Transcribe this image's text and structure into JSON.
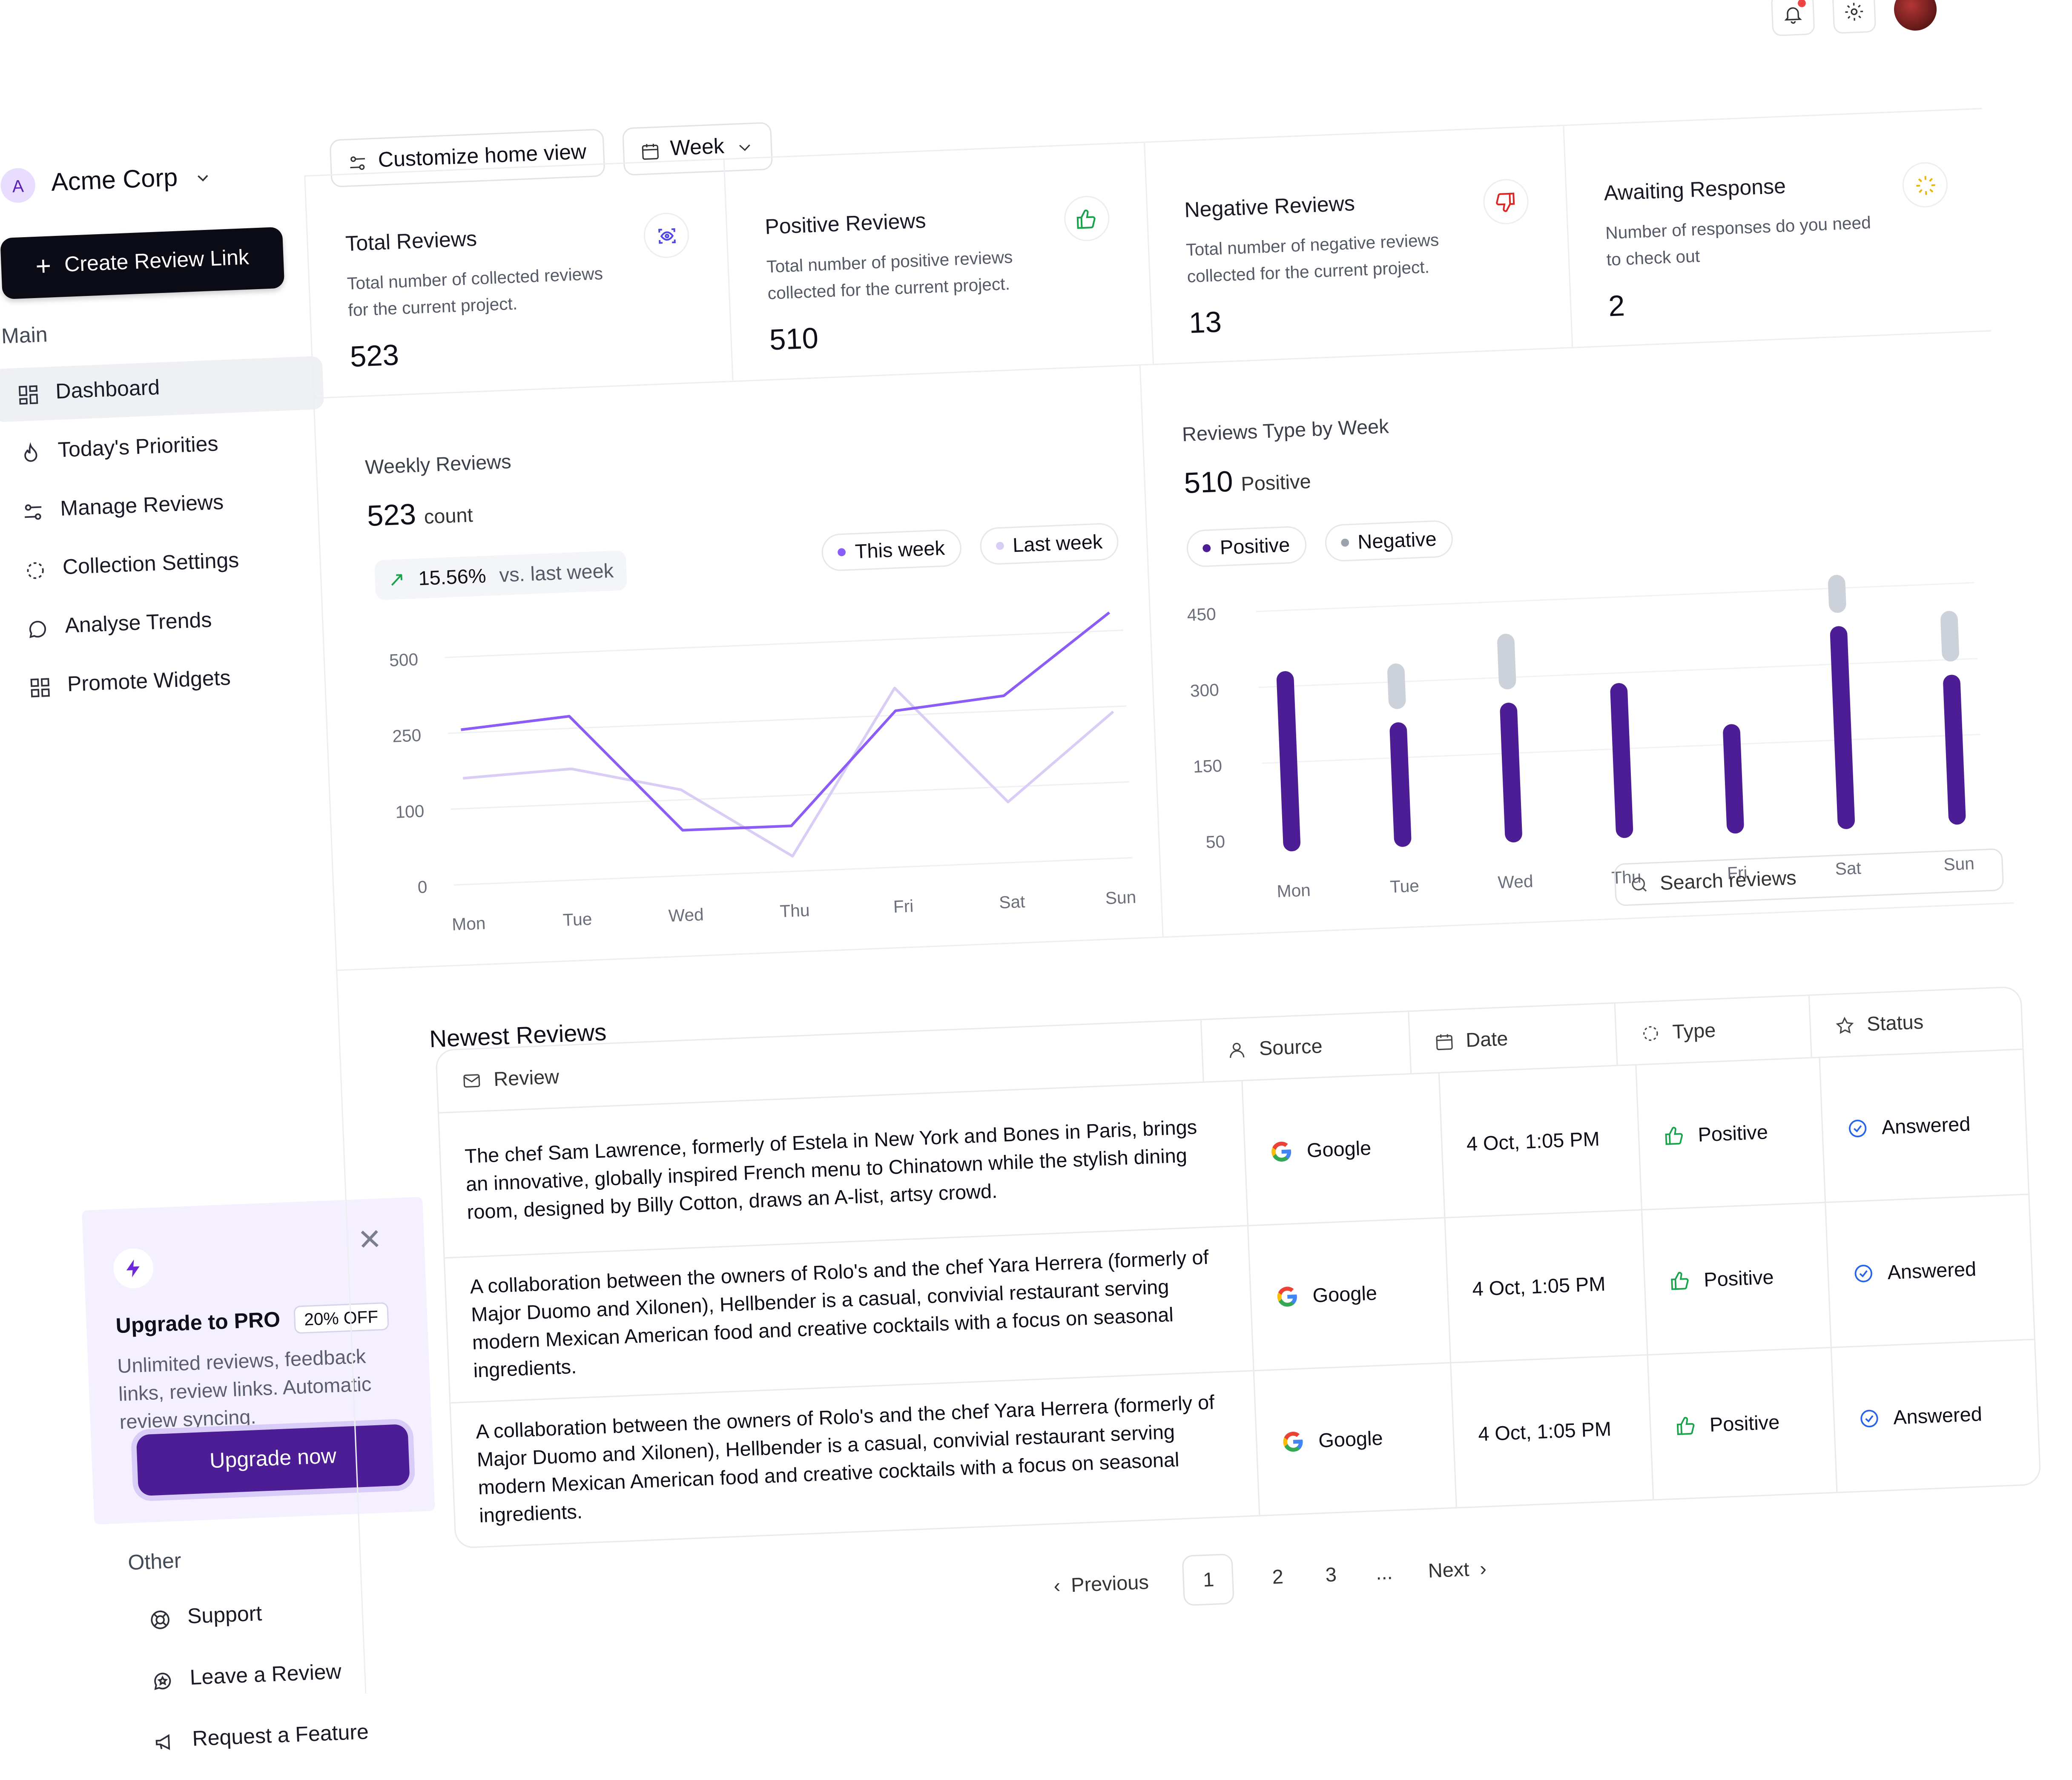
{
  "workspace": {
    "initial": "A",
    "name": "Acme Corp"
  },
  "sidebar": {
    "create_label": "Create Review Link",
    "main_label": "Main",
    "items": [
      {
        "label": "Dashboard",
        "icon": "dashboard-icon",
        "active": true
      },
      {
        "label": "Today's Priorities",
        "icon": "flame-icon"
      },
      {
        "label": "Manage Reviews",
        "icon": "sliders-icon"
      },
      {
        "label": "Collection Settings",
        "icon": "loader-circle-icon"
      },
      {
        "label": "Analyse Trends",
        "icon": "chat-bubble-icon"
      },
      {
        "label": "Promote Widgets",
        "icon": "widgets-icon"
      }
    ],
    "upgrade": {
      "title": "Upgrade to PRO",
      "badge": "20% OFF",
      "text": "Unlimited reviews, feedback links, review links. Automatic review syncing.",
      "button": "Upgrade now"
    },
    "other_label": "Other",
    "other_items": [
      {
        "label": "Support",
        "icon": "lifebuoy-icon"
      },
      {
        "label": "Leave a Review",
        "icon": "chat-star-icon"
      },
      {
        "label": "Request a Feature",
        "icon": "megaphone-icon"
      }
    ]
  },
  "toolbar": {
    "customize_label": "Customize home view",
    "period_label": "Week"
  },
  "stats": [
    {
      "title": "Total Reviews",
      "desc": "Total number of collected reviews for the current project.",
      "value": "523",
      "icon": "eye-scan-icon",
      "color": "#4f46e5"
    },
    {
      "title": "Positive Reviews",
      "desc": "Total number of positive reviews collected for the current project.",
      "value": "510",
      "icon": "thumbs-up-icon",
      "color": "#16a34a"
    },
    {
      "title": "Negative Reviews",
      "desc": "Total number of negative reviews collected for the current project.",
      "value": "13",
      "icon": "thumbs-down-icon",
      "color": "#dc2626"
    },
    {
      "title": "Awaiting Response",
      "desc": "Number of responses do you need to check out",
      "value": "2",
      "icon": "loader-sun-icon",
      "color": "#eab308"
    }
  ],
  "weekly": {
    "title": "Weekly Reviews",
    "value": "523",
    "unit": "count",
    "delta": "15.56%",
    "delta_text": "vs. last week",
    "legend": [
      "This week",
      "Last week"
    ],
    "colors": {
      "this_week": "#8b5cf6",
      "last_week": "#d9cdf6"
    }
  },
  "type_week": {
    "title": "Reviews Type by Week",
    "value": "510",
    "unit": "Positive",
    "legend": [
      "Positive",
      "Negative"
    ],
    "colors": {
      "positive": "#4c1d95",
      "negative": "#cdd1d9"
    }
  },
  "chart_data": [
    {
      "type": "line",
      "categories": [
        "Mon",
        "Tue",
        "Wed",
        "Thu",
        "Fri",
        "Sat",
        "Sun"
      ],
      "yticks": [
        "0",
        "100",
        "250",
        "500"
      ],
      "series": [
        {
          "name": "This week",
          "values": [
            260,
            290,
            60,
            60,
            265,
            300,
            560
          ]
        },
        {
          "name": "Last week",
          "values": [
            160,
            170,
            120,
            20,
            340,
            80,
            240
          ]
        }
      ]
    },
    {
      "type": "bar",
      "categories": [
        "Mon",
        "Tue",
        "Wed",
        "Thu",
        "Fri",
        "Sat",
        "Sun"
      ],
      "yticks": [
        "50",
        "150",
        "300",
        "450"
      ],
      "series": [
        {
          "name": "Positive",
          "values": [
            330,
            220,
            250,
            280,
            190,
            375,
            270
          ]
        },
        {
          "name": "Negative",
          "values": [
            0,
            90,
            110,
            0,
            0,
            75,
            100
          ]
        }
      ]
    }
  ],
  "search": {
    "placeholder": "Search reviews"
  },
  "reviews": {
    "title": "Newest Reviews",
    "headers": [
      "Review",
      "Source",
      "Date",
      "Type",
      "Status"
    ],
    "rows": [
      {
        "review": "The chef Sam Lawrence, formerly of Estela in New York and Bones in Paris, brings an innovative, globally inspired French menu to Chinatown while the stylish dining room, designed by Billy Cotton, draws an A-list, artsy crowd.",
        "source": "Google",
        "date": "4 Oct, 1:05 PM",
        "type": "Positive",
        "status": "Answered"
      },
      {
        "review": "A collaboration between the owners of Rolo's and the chef Yara Herrera (formerly of Major Duomo and Xilonen), Hellbender is a casual, convivial restaurant serving modern Mexican American food and creative cocktails with a focus on seasonal ingredients.",
        "source": "Google",
        "date": "4 Oct, 1:05 PM",
        "type": "Positive",
        "status": "Answered"
      },
      {
        "review": "A collaboration between the owners of Rolo's and the chef Yara Herrera (formerly of Major Duomo and Xilonen), Hellbender is a casual, convivial restaurant serving modern Mexican American food and creative cocktails with a focus on seasonal ingredients.",
        "source": "Google",
        "date": "4 Oct, 1:05 PM",
        "type": "Positive",
        "status": "Answered"
      }
    ]
  },
  "pagination": {
    "previous": "Previous",
    "pages": [
      "1",
      "2",
      "3"
    ],
    "ellipsis": "...",
    "next": "Next",
    "current": "1"
  }
}
